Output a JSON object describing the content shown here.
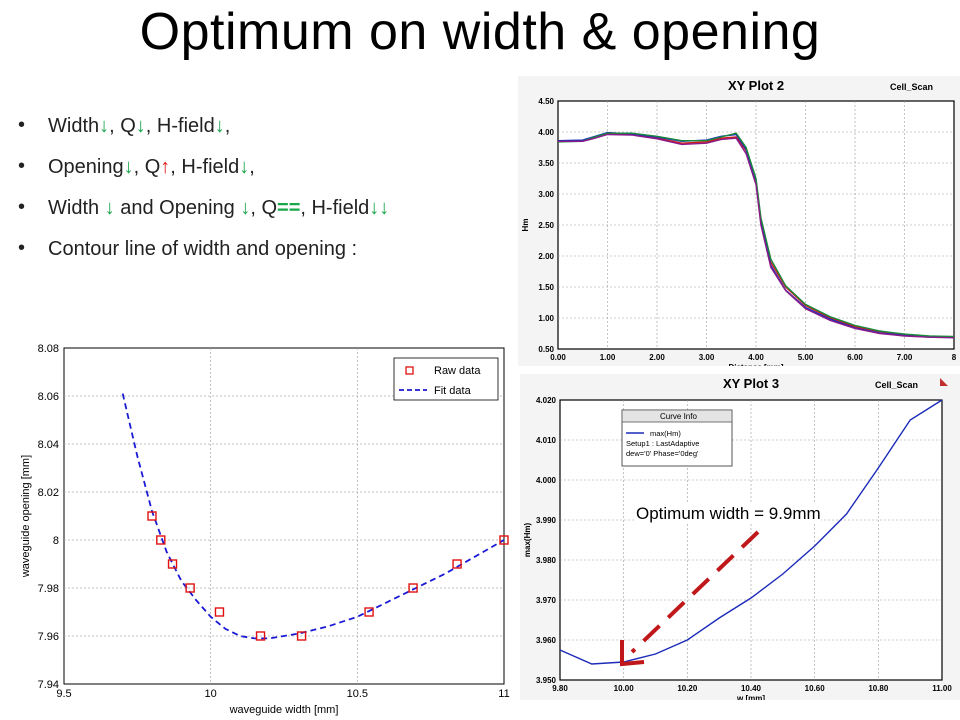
{
  "slide": {
    "title": "Optimum on width & opening",
    "bullets": [
      {
        "segments": [
          [
            "Width",
            ""
          ],
          [
            "↓",
            "g"
          ],
          [
            ", Q",
            ""
          ],
          [
            "↓",
            "g"
          ],
          [
            ", H-field",
            ""
          ],
          [
            "↓",
            "g"
          ],
          [
            ",",
            ""
          ]
        ]
      },
      {
        "segments": [
          [
            "Opening",
            ""
          ],
          [
            "↓",
            "g"
          ],
          [
            ", Q",
            ""
          ],
          [
            "↑",
            "r"
          ],
          [
            ", H-field",
            ""
          ],
          [
            "↓",
            "g"
          ],
          [
            ",",
            ""
          ]
        ]
      },
      {
        "segments": [
          [
            "Width ",
            ""
          ],
          [
            "↓",
            "g"
          ],
          [
            " and Opening ",
            ""
          ],
          [
            "↓",
            "g"
          ],
          [
            ", Q",
            ""
          ],
          [
            "==",
            "g"
          ],
          [
            ", H-field",
            ""
          ],
          [
            "↓↓",
            "g"
          ]
        ]
      },
      {
        "segments": [
          [
            "Contour line of width and opening :",
            ""
          ]
        ]
      }
    ],
    "annotation": "Optimum width = 9.9mm"
  },
  "colors": {
    "arrow_down": "#1aa64b",
    "arrow_up": "#e01818",
    "annotation_arrow": "#c0181a",
    "fit_line": "#1a1ad6",
    "raw_marker": "#e01010",
    "hfss_blue": "#1c2bb8"
  },
  "chart_data": [
    {
      "id": "xy_plot_2",
      "type": "line",
      "title": "XY Plot 2",
      "project_label": "Cell_Scan",
      "xlabel": "Distance [mm]",
      "ylabel": "Hm",
      "xlim": [
        0,
        8
      ],
      "ylim": [
        0.5,
        4.5
      ],
      "xticks": [
        "0.00",
        "1.00",
        "2.00",
        "3.00",
        "4.00",
        "5.00",
        "6.00",
        "7.00",
        "8"
      ],
      "yticks": [
        "0.50",
        "1.00",
        "1.50",
        "2.00",
        "2.50",
        "3.00",
        "3.50",
        "4.00",
        "4.50"
      ],
      "grid": true,
      "series": [
        {
          "color": "#d01818",
          "x": [
            0,
            0.5,
            0.7,
            1,
            1.5,
            2,
            2.5,
            3,
            3.3,
            3.6,
            3.8,
            4,
            4.1,
            4.3,
            4.6,
            5,
            5.5,
            6,
            6.5,
            7,
            7.5,
            8
          ],
          "y": [
            3.85,
            3.86,
            3.9,
            3.97,
            3.96,
            3.9,
            3.82,
            3.84,
            3.9,
            3.92,
            3.7,
            3.2,
            2.6,
            1.9,
            1.5,
            1.2,
            1.0,
            0.86,
            0.78,
            0.73,
            0.7,
            0.7
          ]
        },
        {
          "color": "#1a2fbf",
          "x": [
            0,
            0.5,
            0.7,
            1,
            1.5,
            2,
            2.5,
            3,
            3.3,
            3.6,
            3.8,
            4,
            4.1,
            4.3,
            4.6,
            5,
            5.5,
            6,
            6.5,
            7,
            7.5,
            8
          ],
          "y": [
            3.86,
            3.87,
            3.92,
            3.99,
            3.97,
            3.92,
            3.85,
            3.87,
            3.93,
            3.96,
            3.72,
            3.22,
            2.55,
            1.85,
            1.45,
            1.17,
            0.98,
            0.84,
            0.76,
            0.72,
            0.69,
            0.69
          ]
        },
        {
          "color": "#1a8a3a",
          "x": [
            0,
            0.5,
            0.7,
            1,
            1.5,
            2,
            2.5,
            3,
            3.3,
            3.6,
            3.8,
            4,
            4.1,
            4.3,
            4.6,
            5,
            5.5,
            6,
            6.5,
            7,
            7.5,
            8
          ],
          "y": [
            3.84,
            3.85,
            3.91,
            3.98,
            3.98,
            3.93,
            3.86,
            3.86,
            3.92,
            3.98,
            3.75,
            3.25,
            2.62,
            1.95,
            1.52,
            1.22,
            1.02,
            0.88,
            0.79,
            0.74,
            0.71,
            0.7
          ]
        },
        {
          "color": "#8a1a8a",
          "x": [
            0,
            0.5,
            0.7,
            1,
            1.5,
            2,
            2.5,
            3,
            3.3,
            3.6,
            3.8,
            4,
            4.1,
            4.3,
            4.6,
            5,
            5.5,
            6,
            6.5,
            7,
            7.5,
            8
          ],
          "y": [
            3.85,
            3.85,
            3.89,
            3.96,
            3.95,
            3.89,
            3.8,
            3.82,
            3.88,
            3.9,
            3.65,
            3.15,
            2.5,
            1.82,
            1.44,
            1.15,
            0.96,
            0.83,
            0.75,
            0.71,
            0.69,
            0.68
          ]
        }
      ]
    },
    {
      "id": "opening_vs_width",
      "type": "scatter",
      "xlabel": "waveguide width [mm]",
      "ylabel": "waveguide opening [mm]",
      "xlim": [
        9.5,
        11
      ],
      "ylim": [
        7.94,
        8.08
      ],
      "xticks": [
        "9.5",
        "10",
        "10.5",
        "11"
      ],
      "yticks": [
        "7.94",
        "7.96",
        "7.98",
        "8",
        "8.02",
        "8.04",
        "8.06",
        "8.08"
      ],
      "xtick_values": [
        9.5,
        10,
        10.5,
        11
      ],
      "ytick_values": [
        7.94,
        7.96,
        7.98,
        8.0,
        8.02,
        8.04,
        8.06,
        8.08
      ],
      "grid": true,
      "legend": "top-right",
      "series": [
        {
          "name": "Raw data",
          "style": "markers",
          "x": [
            9.8,
            9.83,
            9.87,
            9.93,
            10.03,
            10.17,
            10.31,
            10.54,
            10.69,
            10.84,
            11.0
          ],
          "y": [
            8.01,
            8.0,
            7.99,
            7.98,
            7.97,
            7.96,
            7.96,
            7.97,
            7.98,
            7.99,
            8.0
          ]
        },
        {
          "name": "Fit data",
          "style": "dashed",
          "x": [
            9.7,
            9.75,
            9.8,
            9.85,
            9.9,
            9.95,
            10.0,
            10.05,
            10.1,
            10.15,
            10.2,
            10.3,
            10.4,
            10.5,
            10.6,
            10.7,
            10.8,
            10.9,
            11.0
          ],
          "y": [
            8.061,
            8.035,
            8.012,
            7.995,
            7.983,
            7.975,
            7.968,
            7.963,
            7.96,
            7.959,
            7.959,
            7.961,
            7.964,
            7.968,
            7.974,
            7.98,
            7.986,
            7.993,
            8.0
          ]
        }
      ]
    },
    {
      "id": "xy_plot_3",
      "type": "line",
      "title": "XY Plot 3",
      "project_label": "Cell_Scan",
      "xlabel": "w [mm]",
      "ylabel": "max(Hm)",
      "xlim": [
        9.8,
        11.0
      ],
      "ylim": [
        3.95,
        4.02
      ],
      "xticks": [
        "9.80",
        "10.00",
        "10.20",
        "10.40",
        "10.60",
        "10.80",
        "11.00"
      ],
      "yticks": [
        "3.950",
        "3.960",
        "3.970",
        "3.980",
        "3.990",
        "4.000",
        "4.010",
        "4.020"
      ],
      "grid": true,
      "legend_title": "Curve Info",
      "legend_lines": [
        "max(Hm)",
        "Setup1 : LastAdaptive",
        "dew='0' Phase='0deg'"
      ],
      "series": [
        {
          "name": "max(Hm)",
          "color": "#1c2bb8",
          "x": [
            9.8,
            9.9,
            10.0,
            10.1,
            10.2,
            10.3,
            10.4,
            10.5,
            10.6,
            10.7,
            10.8,
            10.9,
            11.0
          ],
          "y": [
            3.9575,
            3.954,
            3.9545,
            3.9565,
            3.96,
            3.9655,
            3.9705,
            3.9765,
            3.9835,
            3.9915,
            4.003,
            4.015,
            4.02
          ]
        }
      ]
    }
  ]
}
